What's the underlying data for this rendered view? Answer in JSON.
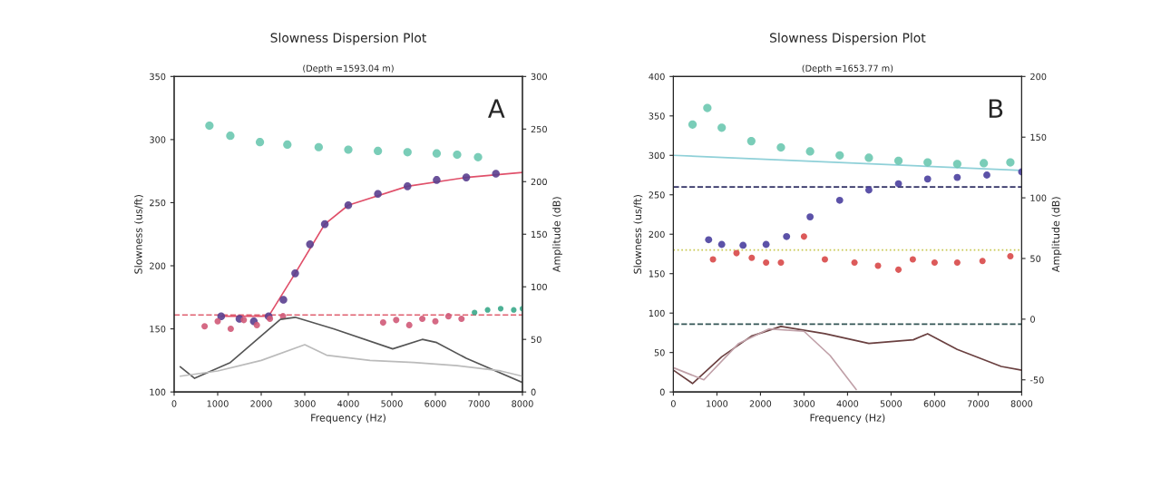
{
  "chart_data": [
    {
      "type": "scatter",
      "title": "Slowness Dispersion Plot",
      "subtitle": "(Depth =1593.04 m)",
      "xlabel": "Frequency (Hz)",
      "ylabel": "Slowness (us/ft)",
      "y2label": "Amplitude (dB)",
      "annotations": [
        "A"
      ],
      "xlim": [
        0,
        8000
      ],
      "xticks": [
        0,
        1000,
        2000,
        3000,
        4000,
        5000,
        6000,
        7000,
        8000
      ],
      "ylim": [
        100,
        350
      ],
      "yticks": [
        100,
        150,
        200,
        250,
        300,
        350
      ],
      "y2lim": [
        0,
        300
      ],
      "y2ticks": [
        0,
        50,
        100,
        150,
        200,
        250,
        300
      ],
      "series": [
        {
          "marker": "circle",
          "color": "#6cc8b0",
          "x": [
            810,
            1290,
            1970,
            2600,
            3320,
            4000,
            4680,
            5360,
            6030,
            6500,
            6980
          ],
          "values": [
            311,
            303,
            298,
            296,
            294,
            292,
            291,
            290,
            289,
            288,
            286
          ]
        },
        {
          "marker": "circle",
          "color": "#5a3f8f",
          "x": [
            1080,
            1500,
            1830,
            2170,
            2510,
            2780,
            3120,
            3460,
            4000,
            4680,
            5360,
            6030,
            6710,
            7390
          ],
          "values": [
            160,
            158,
            156,
            160,
            173,
            194,
            217,
            233,
            248,
            257,
            263,
            268,
            270,
            273
          ]
        },
        {
          "type": "line",
          "color": "#e0506a",
          "x": [
            1080,
            2170,
            2780,
            3460,
            4000,
            5360,
            6710,
            8000
          ],
          "values": [
            160,
            160,
            194,
            233,
            248,
            263,
            270,
            274
          ]
        },
        {
          "marker": "circle",
          "color": "#d05a78",
          "x": [
            700,
            1000,
            1300,
            1600,
            1900,
            2200,
            2500,
            4800,
            5100,
            5400,
            5700,
            6000,
            6300,
            6600
          ],
          "values": [
            152,
            156,
            150,
            157,
            153,
            158,
            160,
            155,
            157,
            153,
            158,
            156,
            160,
            158
          ]
        },
        {
          "marker": "circle",
          "color": "#3aa88a",
          "x": [
            6900,
            7200,
            7500,
            7800,
            8000
          ],
          "values": [
            163,
            165,
            166,
            165,
            166
          ]
        },
        {
          "type": "line",
          "axis": "y2",
          "color": "#555555",
          "x": [
            140,
            470,
            1290,
            2440,
            2780,
            3660,
            5020,
            5700,
            6030,
            6710,
            8000
          ],
          "values": [
            24,
            13,
            28,
            69,
            71,
            60,
            41,
            50,
            47,
            32,
            9
          ]
        },
        {
          "type": "line",
          "axis": "y2",
          "color": "#bbbbbb",
          "x": [
            140,
            1000,
            2000,
            3000,
            3500,
            4500,
            5500,
            6500,
            7500,
            8000
          ],
          "values": [
            15,
            20,
            30,
            45,
            35,
            30,
            28,
            25,
            20,
            15
          ]
        }
      ],
      "ref_lines": [
        {
          "axis": "y",
          "value": 161,
          "color": "#e06070",
          "line_style": "dashed"
        }
      ]
    },
    {
      "type": "scatter",
      "title": "Slowness Dispersion Plot",
      "subtitle": "(Depth =1653.77 m)",
      "xlabel": "Frequency (Hz)",
      "ylabel": "Slowness (us/ft)",
      "y2label": "Amplitude (dB)",
      "annotations": [
        "B"
      ],
      "xlim": [
        0,
        8000
      ],
      "xticks": [
        0,
        1000,
        2000,
        3000,
        4000,
        5000,
        6000,
        7000,
        8000
      ],
      "ylim": [
        0,
        400
      ],
      "yticks": [
        0,
        50,
        100,
        150,
        200,
        250,
        300,
        350,
        400
      ],
      "y2lim": [
        -60,
        200
      ],
      "y2ticks": [
        -50,
        0,
        50,
        100,
        150,
        200
      ],
      "series": [
        {
          "marker": "circle",
          "color": "#6cc8b0",
          "x": [
            440,
            780,
            1110,
            1790,
            2470,
            3140,
            3820,
            4490,
            5170,
            5840,
            6520,
            7130,
            7740
          ],
          "values": [
            339,
            360,
            335,
            318,
            310,
            305,
            300,
            297,
            293,
            291,
            289,
            290,
            291
          ]
        },
        {
          "type": "line",
          "color": "#8fd0d8",
          "x": [
            0,
            8000
          ],
          "values": [
            300,
            281
          ]
        },
        {
          "marker": "circle",
          "color": "#4a3f9f",
          "x": [
            810,
            1110,
            1600,
            2130,
            2600,
            3140,
            3820,
            4490,
            5170,
            5840,
            6520,
            7200,
            8000
          ],
          "values": [
            193,
            187,
            186,
            187,
            197,
            222,
            243,
            256,
            264,
            270,
            272,
            275,
            279
          ]
        },
        {
          "marker": "circle",
          "color": "#d84848",
          "x": [
            910,
            1450,
            1800,
            2130,
            2470,
            3000,
            3480,
            4160,
            4700,
            5170,
            5500,
            6000,
            6520,
            7100,
            7740
          ],
          "values": [
            168,
            176,
            170,
            164,
            164,
            197,
            168,
            164,
            160,
            155,
            168,
            164,
            164,
            166,
            172
          ]
        },
        {
          "type": "line",
          "axis": "y2",
          "color": "#6a4040",
          "x": [
            0,
            440,
            1110,
            1790,
            2470,
            3480,
            4490,
            5510,
            5840,
            6520,
            7530,
            8000
          ],
          "values": [
            -42,
            -53,
            -31,
            -14,
            -6,
            -12,
            -20,
            -17,
            -12,
            -25,
            -39,
            -42
          ]
        },
        {
          "type": "line",
          "axis": "y2",
          "color": "#c0a0a8",
          "x": [
            0,
            700,
            1500,
            2200,
            3000,
            3600,
            4200
          ],
          "values": [
            -40,
            -50,
            -20,
            -8,
            -10,
            -30,
            -58
          ]
        }
      ],
      "ref_lines": [
        {
          "axis": "y",
          "value": 260,
          "color": "#333366",
          "line_style": "dashed"
        },
        {
          "axis": "y",
          "value": 86,
          "color": "#335555",
          "line_style": "dashed"
        },
        {
          "axis": "y",
          "value": 180,
          "color": "#c8c850",
          "line_style": "dotted"
        }
      ]
    }
  ]
}
